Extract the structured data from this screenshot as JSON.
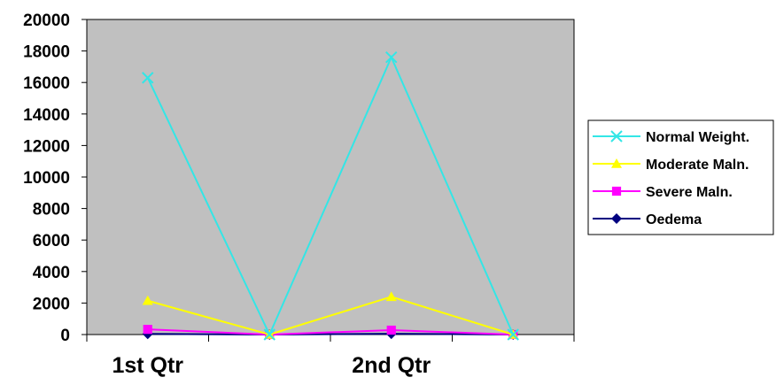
{
  "chart_data": {
    "type": "line",
    "categories": [
      "1st Qtr",
      "",
      "2nd Qtr",
      ""
    ],
    "ylim": [
      0,
      20000
    ],
    "yticks": [
      0,
      2000,
      4000,
      6000,
      8000,
      10000,
      12000,
      14000,
      16000,
      18000,
      20000
    ],
    "grid": false,
    "legend_position": "right",
    "plot_background": "#C0C0C0",
    "series": [
      {
        "name": "Normal Weight.",
        "color": "#33E6E6",
        "marker": "x",
        "values": [
          16300,
          0,
          17600,
          0
        ]
      },
      {
        "name": "Moderate Maln.",
        "color": "#FFFF00",
        "marker": "triangle",
        "values": [
          2150,
          0,
          2400,
          0
        ]
      },
      {
        "name": "Severe Maln.",
        "color": "#FF00FF",
        "marker": "square",
        "values": [
          330,
          0,
          280,
          0
        ]
      },
      {
        "name": "Oedema",
        "color": "#000080",
        "marker": "diamond",
        "values": [
          40,
          0,
          50,
          0
        ]
      }
    ]
  }
}
